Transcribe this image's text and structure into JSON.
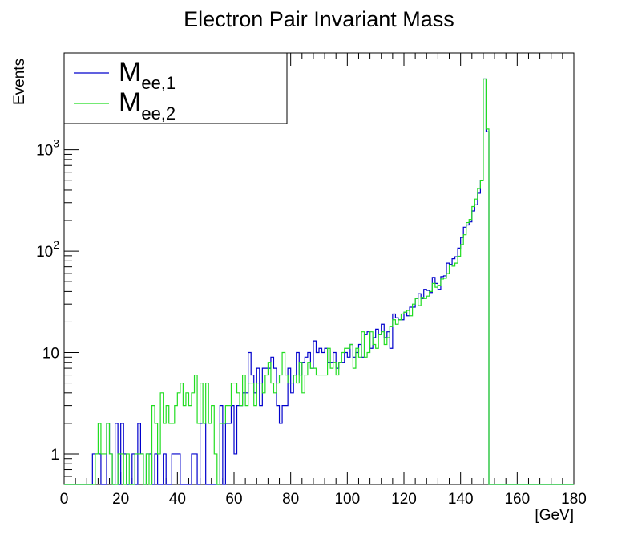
{
  "chart_data": {
    "type": "line",
    "title": "Electron Pair Invariant Mass",
    "xlabel": "[GeV]",
    "ylabel": "Events",
    "xlim": [
      0,
      180
    ],
    "ylim": [
      0.5,
      9000
    ],
    "yscale": "log",
    "grid": false,
    "legend_position": "top-left",
    "x_ticks": [
      0,
      20,
      40,
      60,
      80,
      100,
      120,
      140,
      160,
      180
    ],
    "x_tick_labels": [
      "0",
      "20",
      "40",
      "60",
      "80",
      "100",
      "120",
      "140",
      "160",
      "180"
    ],
    "y_ticks": [
      1,
      10,
      100,
      1000
    ],
    "y_tick_labels": [
      {
        "base": "1",
        "exp": ""
      },
      {
        "base": "10",
        "exp": ""
      },
      {
        "base": "10",
        "exp": "2"
      },
      {
        "base": "10",
        "exp": "3"
      }
    ],
    "bin_width": 1,
    "x_start": 0,
    "series": [
      {
        "name": "M",
        "subscript": "ee,1",
        "color": "#0000cc",
        "values": [
          0,
          0,
          0,
          0,
          0,
          0,
          0,
          0,
          0,
          0,
          1,
          1,
          1,
          0,
          0,
          2,
          1,
          0,
          2,
          0,
          2,
          1,
          0,
          0,
          1,
          0,
          2,
          1,
          0,
          1,
          1,
          0,
          1,
          0,
          0,
          1,
          0,
          0,
          1,
          1,
          1,
          0,
          0,
          0,
          0,
          1,
          1,
          0,
          2,
          2,
          0,
          0,
          0,
          0,
          0,
          3,
          0,
          2,
          2,
          3,
          1,
          3,
          3,
          4,
          4,
          10,
          6,
          4,
          7,
          3,
          7,
          7,
          7,
          9,
          7,
          3,
          2,
          3,
          3,
          7,
          4,
          6,
          10,
          6,
          8,
          9,
          10,
          7,
          13,
          10,
          11,
          10,
          11,
          8,
          8,
          10,
          7,
          8,
          8,
          10,
          9,
          12,
          9,
          10,
          12,
          9,
          15,
          16,
          11,
          14,
          17,
          15,
          19,
          14,
          16,
          11,
          24,
          22,
          21,
          21,
          25,
          23,
          28,
          28,
          34,
          38,
          34,
          42,
          41,
          39,
          55,
          48,
          42,
          56,
          57,
          76,
          74,
          84,
          88,
          107,
          136,
          172,
          181,
          194,
          249,
          286,
          372,
          500,
          4986,
          1500,
          0,
          0,
          0,
          0,
          0,
          0,
          0,
          0,
          0,
          0,
          0,
          0,
          0,
          0,
          0,
          0,
          0,
          0,
          0,
          0,
          0,
          0,
          0,
          0,
          0,
          0,
          0,
          0,
          0,
          0
        ]
      },
      {
        "name": "M",
        "subscript": "ee,2",
        "color": "#22dd22",
        "values": [
          0,
          0,
          0,
          0,
          0,
          0,
          0,
          0,
          0,
          0,
          0,
          1,
          2,
          1,
          1,
          2,
          1,
          0,
          0,
          1,
          1,
          0,
          1,
          0,
          0,
          1,
          1,
          1,
          0,
          1,
          0,
          3,
          2,
          1,
          4,
          2,
          3,
          2,
          2,
          3,
          4,
          5,
          3,
          4,
          3,
          4,
          6,
          2,
          5,
          2,
          5,
          2,
          3,
          1,
          0,
          2,
          2,
          3,
          3,
          5,
          5,
          4,
          3,
          6,
          3,
          5,
          5,
          3,
          5,
          5,
          4,
          6,
          8,
          5,
          4,
          5,
          6,
          10,
          6,
          5,
          5,
          6,
          5,
          8,
          4,
          6,
          8,
          7,
          7,
          6,
          6,
          6,
          6,
          11,
          7,
          8,
          6,
          8,
          10,
          11,
          11,
          12,
          7,
          11,
          9,
          16,
          9,
          10,
          16,
          12,
          11,
          15,
          16,
          12,
          14,
          18,
          21,
          19,
          21,
          24,
          25,
          26,
          23,
          30,
          34,
          29,
          35,
          34,
          36,
          40,
          48,
          44,
          46,
          53,
          54,
          60,
          73,
          71,
          76,
          89,
          116,
          145,
          191,
          205,
          275,
          326,
          414,
          494,
          4980,
          1600,
          0,
          0,
          0,
          0,
          0,
          0,
          0,
          0,
          0,
          0,
          0,
          0,
          0,
          0,
          0,
          0,
          0,
          0,
          0,
          0,
          0,
          0,
          0,
          0,
          0,
          0,
          0,
          0,
          0,
          0
        ]
      }
    ]
  }
}
